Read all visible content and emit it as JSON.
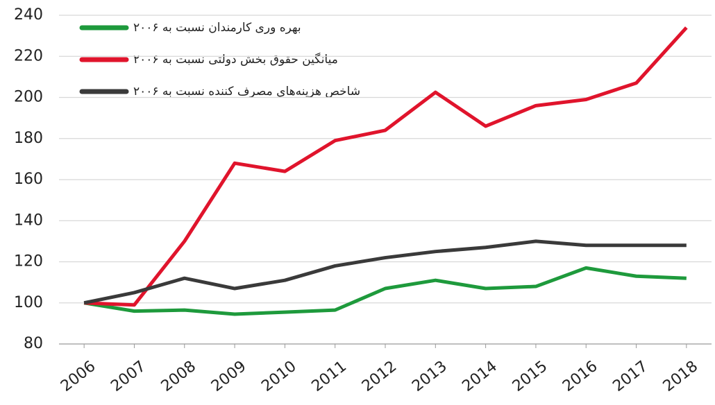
{
  "chart_data": {
    "type": "line",
    "categories": [
      "2006",
      "2007",
      "2008",
      "2009",
      "2010",
      "2011",
      "2012",
      "2013",
      "2014",
      "2015",
      "2016",
      "2017",
      "2018"
    ],
    "series": [
      {
        "name": "بهره وری کارمندان نسبت به ۲۰۰۶",
        "color": "#1e9a3c",
        "values": [
          100,
          96,
          96.5,
          94.5,
          95.5,
          96.5,
          107,
          111,
          107,
          108,
          117,
          113,
          112
        ]
      },
      {
        "name": "میانگین حقوق بخش دولتی نسبت به ۲۰۰۶",
        "color": "#e0142c",
        "values": [
          100,
          99,
          130,
          168,
          164,
          179,
          184,
          202.5,
          186,
          196,
          199,
          207,
          234
        ]
      },
      {
        "name": "شاخص هزینه‌های مصرف کننده نسبت به ۲۰۰۶",
        "color": "#3a3a3a",
        "values": [
          100,
          105,
          112,
          107,
          111,
          118,
          122,
          125,
          127,
          130,
          128,
          128,
          128
        ]
      }
    ],
    "ylim": [
      80,
      240
    ],
    "yticks": [
      80,
      100,
      120,
      140,
      160,
      180,
      200,
      220,
      240
    ],
    "grid": true
  }
}
